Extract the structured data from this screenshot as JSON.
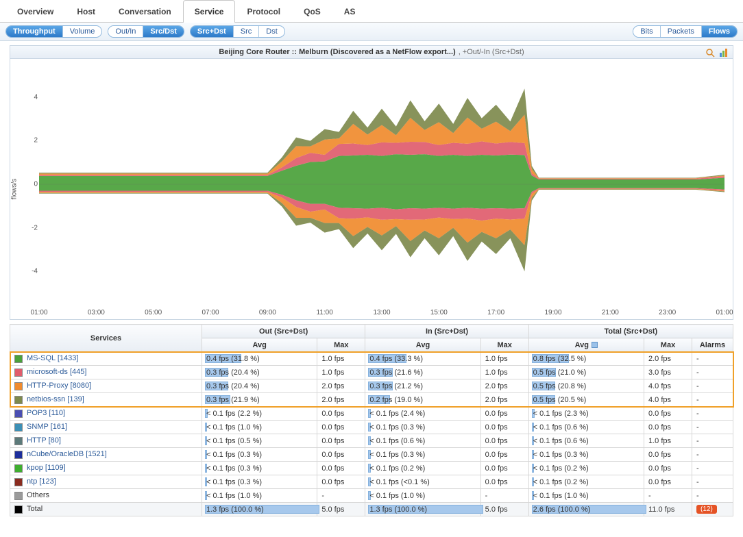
{
  "main_tabs": {
    "items": [
      "Overview",
      "Host",
      "Conversation",
      "Service",
      "Protocol",
      "QoS",
      "AS"
    ],
    "active_index": 3
  },
  "toolbar": {
    "group1": {
      "options": [
        "Throughput",
        "Volume"
      ],
      "selected": 0
    },
    "group2": {
      "options": [
        "Out/In",
        "Src/Dst"
      ],
      "selected": 1
    },
    "group3": {
      "options": [
        "Src+Dst",
        "Src",
        "Dst"
      ],
      "selected": 0
    },
    "group_right": {
      "options": [
        "Bits",
        "Packets",
        "Flows"
      ],
      "selected": 2
    }
  },
  "chart": {
    "title_bold": "Beijing Core Router :: Melburn (Discovered as a NetFlow export...)",
    "title_light": ", +Out/-In (Src+Dst)",
    "y_label": "flows/s",
    "y_ticks": [
      -4,
      -2,
      0,
      2,
      4
    ],
    "y_min": -5.5,
    "y_max": 5.5,
    "x_ticks": [
      "01:00",
      "03:00",
      "05:00",
      "07:00",
      "09:00",
      "11:00",
      "13:00",
      "15:00",
      "17:00",
      "19:00",
      "21:00",
      "23:00",
      "01:00"
    ],
    "x_timepoints": [
      "00:00",
      "01:00",
      "02:00",
      "03:00",
      "04:00",
      "05:00",
      "06:00",
      "07:00",
      "08:00",
      "08:30",
      "09:00",
      "09:30",
      "10:00",
      "10:30",
      "11:00",
      "11:30",
      "12:00",
      "12:30",
      "13:00",
      "13:30",
      "14:00",
      "14:30",
      "15:00",
      "15:30",
      "16:00",
      "16:30",
      "17:00",
      "17:15",
      "17:30",
      "18:00",
      "19:00",
      "20:00",
      "21:00",
      "22:00",
      "23:00",
      "24:00"
    ],
    "stack_colors": [
      "#4aa13a",
      "#e05c6c",
      "#f08b2e",
      "#7e8a4d"
    ],
    "series_out": {
      "green": [
        0.38,
        0.38,
        0.38,
        0.38,
        0.38,
        0.38,
        0.38,
        0.38,
        0.38,
        0.62,
        0.85,
        1.02,
        1.05,
        1.3,
        1.32,
        1.35,
        1.3,
        1.38,
        1.35,
        1.38,
        1.3,
        1.35,
        1.3,
        1.35,
        1.32,
        1.36,
        1.34,
        0.4,
        0.22,
        0.22,
        0.22,
        0.22,
        0.22,
        0.22,
        0.22,
        0.3
      ],
      "red": [
        0.05,
        0.05,
        0.05,
        0.05,
        0.05,
        0.05,
        0.05,
        0.05,
        0.05,
        0.15,
        0.35,
        0.42,
        0.3,
        0.55,
        0.55,
        0.45,
        0.62,
        0.52,
        0.6,
        0.56,
        0.5,
        0.55,
        0.56,
        0.62,
        0.55,
        0.58,
        0.55,
        0.1,
        0.04,
        0.04,
        0.04,
        0.04,
        0.04,
        0.04,
        0.04,
        0.06
      ],
      "orange": [
        0.06,
        0.06,
        0.06,
        0.06,
        0.06,
        0.06,
        0.06,
        0.06,
        0.06,
        0.28,
        0.55,
        0.3,
        0.7,
        0.25,
        0.9,
        0.48,
        0.8,
        0.35,
        1.1,
        0.55,
        1.05,
        0.45,
        1.2,
        0.58,
        1.0,
        0.5,
        1.3,
        0.2,
        0.02,
        0.02,
        0.02,
        0.02,
        0.02,
        0.02,
        0.02,
        0.04
      ],
      "olive": [
        0.04,
        0.04,
        0.04,
        0.04,
        0.04,
        0.04,
        0.04,
        0.04,
        0.04,
        0.18,
        0.4,
        0.25,
        0.48,
        0.3,
        0.6,
        0.32,
        0.75,
        0.4,
        0.8,
        0.4,
        0.85,
        0.42,
        0.9,
        0.48,
        0.78,
        0.44,
        1.2,
        0.15,
        0.02,
        0.02,
        0.02,
        0.02,
        0.02,
        0.02,
        0.02,
        0.04
      ]
    },
    "series_in": {
      "green": [
        0.3,
        0.3,
        0.3,
        0.3,
        0.3,
        0.3,
        0.3,
        0.3,
        0.3,
        0.48,
        0.74,
        0.9,
        0.9,
        1.08,
        1.1,
        1.12,
        1.08,
        1.15,
        1.1,
        1.12,
        1.08,
        1.12,
        1.08,
        1.12,
        1.1,
        1.12,
        1.1,
        0.35,
        0.18,
        0.18,
        0.18,
        0.18,
        0.18,
        0.18,
        0.18,
        0.24
      ],
      "red": [
        0.05,
        0.05,
        0.05,
        0.05,
        0.05,
        0.05,
        0.05,
        0.05,
        0.05,
        0.13,
        0.3,
        0.36,
        0.26,
        0.48,
        0.48,
        0.4,
        0.55,
        0.45,
        0.53,
        0.5,
        0.45,
        0.48,
        0.5,
        0.55,
        0.48,
        0.5,
        0.48,
        0.09,
        0.03,
        0.03,
        0.03,
        0.03,
        0.03,
        0.03,
        0.03,
        0.05
      ],
      "orange": [
        0.05,
        0.05,
        0.05,
        0.05,
        0.05,
        0.05,
        0.05,
        0.05,
        0.05,
        0.25,
        0.5,
        0.28,
        0.62,
        0.22,
        0.8,
        0.44,
        0.72,
        0.32,
        0.98,
        0.5,
        0.95,
        0.4,
        1.1,
        0.52,
        0.9,
        0.46,
        1.22,
        0.18,
        0.02,
        0.02,
        0.02,
        0.02,
        0.02,
        0.02,
        0.02,
        0.04
      ],
      "olive": [
        0.03,
        0.03,
        0.03,
        0.03,
        0.03,
        0.03,
        0.03,
        0.03,
        0.03,
        0.16,
        0.36,
        0.22,
        0.44,
        0.28,
        0.55,
        0.3,
        0.68,
        0.36,
        0.74,
        0.36,
        0.78,
        0.38,
        0.84,
        0.44,
        0.72,
        0.4,
        1.2,
        0.14,
        0.02,
        0.02,
        0.02,
        0.02,
        0.02,
        0.02,
        0.02,
        0.03
      ]
    },
    "background_color": "#ffffff",
    "zero_line_color": "#666666"
  },
  "table": {
    "group_headers": {
      "services": "Services",
      "out": "Out (Src+Dst)",
      "in": "In (Src+Dst)",
      "total": "Total (Src+Dst)"
    },
    "col_headers": {
      "avg": "Avg",
      "max": "Max",
      "alarms": "Alarms"
    },
    "sorted_col": "total_avg",
    "highlight_first_n": 4,
    "rows": [
      {
        "color": "#4aa13a",
        "name": "MS-SQL [1433]",
        "out_avg": "0.4 fps (31.8 %)",
        "out_pct": 31.8,
        "out_max": "1.0 fps",
        "in_avg": "0.4 fps (33.3 %)",
        "in_pct": 33.3,
        "in_max": "1.0 fps",
        "tot_avg": "0.8 fps (32.5 %)",
        "tot_pct": 32.5,
        "tot_max": "2.0 fps",
        "alarm": "-"
      },
      {
        "color": "#e05c6c",
        "name": "microsoft-ds [445]",
        "out_avg": "0.3 fps (20.4 %)",
        "out_pct": 20.4,
        "out_max": "1.0 fps",
        "in_avg": "0.3 fps (21.6 %)",
        "in_pct": 21.6,
        "in_max": "1.0 fps",
        "tot_avg": "0.5 fps (21.0 %)",
        "tot_pct": 21.0,
        "tot_max": "3.0 fps",
        "alarm": "-"
      },
      {
        "color": "#f08b2e",
        "name": "HTTP-Proxy [8080]",
        "out_avg": "0.3 fps (20.4 %)",
        "out_pct": 20.4,
        "out_max": "2.0 fps",
        "in_avg": "0.3 fps (21.2 %)",
        "in_pct": 21.2,
        "in_max": "2.0 fps",
        "tot_avg": "0.5 fps (20.8 %)",
        "tot_pct": 20.8,
        "tot_max": "4.0 fps",
        "alarm": "-"
      },
      {
        "color": "#7e8a4d",
        "name": "netbios-ssn [139]",
        "out_avg": "0.3 fps (21.9 %)",
        "out_pct": 21.9,
        "out_max": "2.0 fps",
        "in_avg": "0.2 fps (19.0 %)",
        "in_pct": 19.0,
        "in_max": "2.0 fps",
        "tot_avg": "0.5 fps (20.5 %)",
        "tot_pct": 20.5,
        "tot_max": "4.0 fps",
        "alarm": "-"
      },
      {
        "color": "#4a4fb3",
        "name": "POP3 [110]",
        "out_avg": "< 0.1 fps (2.2 %)",
        "out_pct": 2.2,
        "out_max": "0.0 fps",
        "in_avg": "< 0.1 fps (2.4 %)",
        "in_pct": 2.4,
        "in_max": "0.0 fps",
        "tot_avg": "< 0.1 fps (2.3 %)",
        "tot_pct": 2.3,
        "tot_max": "0.0 fps",
        "alarm": "-"
      },
      {
        "color": "#3c8fb5",
        "name": "SNMP [161]",
        "out_avg": "< 0.1 fps (1.0 %)",
        "out_pct": 1.0,
        "out_max": "0.0 fps",
        "in_avg": "< 0.1 fps (0.3 %)",
        "in_pct": 0.3,
        "in_max": "0.0 fps",
        "tot_avg": "< 0.1 fps (0.6 %)",
        "tot_pct": 0.6,
        "tot_max": "0.0 fps",
        "alarm": "-"
      },
      {
        "color": "#5c7a7a",
        "name": "HTTP [80]",
        "out_avg": "< 0.1 fps (0.5 %)",
        "out_pct": 0.5,
        "out_max": "0.0 fps",
        "in_avg": "< 0.1 fps (0.6 %)",
        "in_pct": 0.6,
        "in_max": "0.0 fps",
        "tot_avg": "< 0.1 fps (0.6 %)",
        "tot_pct": 0.6,
        "tot_max": "1.0 fps",
        "alarm": "-"
      },
      {
        "color": "#1c2e9c",
        "name": "nCube/OracleDB [1521]",
        "out_avg": "< 0.1 fps (0.3 %)",
        "out_pct": 0.3,
        "out_max": "0.0 fps",
        "in_avg": "< 0.1 fps (0.3 %)",
        "in_pct": 0.3,
        "in_max": "0.0 fps",
        "tot_avg": "< 0.1 fps (0.3 %)",
        "tot_pct": 0.3,
        "tot_max": "0.0 fps",
        "alarm": "-"
      },
      {
        "color": "#3fae2f",
        "name": "kpop [1109]",
        "out_avg": "< 0.1 fps (0.3 %)",
        "out_pct": 0.3,
        "out_max": "0.0 fps",
        "in_avg": "< 0.1 fps (0.2 %)",
        "in_pct": 0.2,
        "in_max": "0.0 fps",
        "tot_avg": "< 0.1 fps (0.2 %)",
        "tot_pct": 0.2,
        "tot_max": "0.0 fps",
        "alarm": "-"
      },
      {
        "color": "#8a2b1f",
        "name": "ntp [123]",
        "out_avg": "< 0.1 fps (0.3 %)",
        "out_pct": 0.3,
        "out_max": "0.0 fps",
        "in_avg": "< 0.1 fps (<0.1 %)",
        "in_pct": 0.1,
        "in_max": "0.0 fps",
        "tot_avg": "< 0.1 fps (0.2 %)",
        "tot_pct": 0.2,
        "tot_max": "0.0 fps",
        "alarm": "-"
      },
      {
        "color": "#9a9a9a",
        "name": "Others",
        "plain": true,
        "out_avg": "< 0.1 fps (1.0 %)",
        "out_pct": 1.0,
        "out_max": "-",
        "in_avg": "< 0.1 fps (1.0 %)",
        "in_pct": 1.0,
        "in_max": "-",
        "tot_avg": "< 0.1 fps (1.0 %)",
        "tot_pct": 1.0,
        "tot_max": "-",
        "alarm": "-"
      }
    ],
    "total_row": {
      "color": "#000000",
      "name": "Total",
      "plain": true,
      "out_avg": "1.3 fps (100.0 %)",
      "out_pct": 100,
      "out_max": "5.0 fps",
      "in_avg": "1.3 fps (100.0 %)",
      "in_pct": 100,
      "in_max": "5.0 fps",
      "tot_avg": "2.6 fps (100.0 %)",
      "tot_pct": 100,
      "tot_max": "11.0 fps",
      "alarm_badge": "(12)"
    }
  }
}
